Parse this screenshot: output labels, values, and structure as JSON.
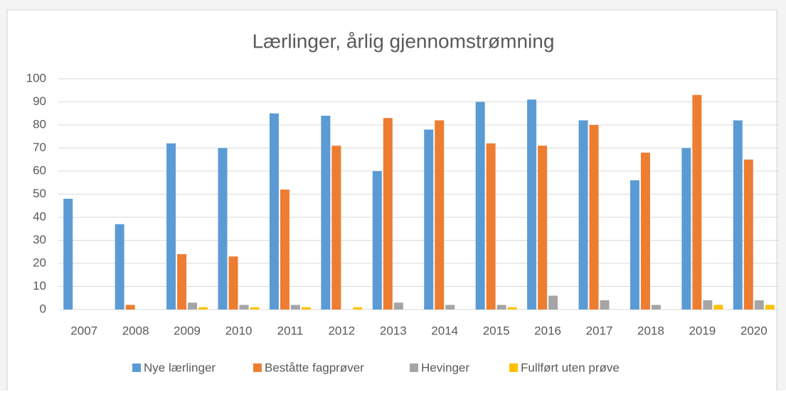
{
  "chart_data": {
    "type": "bar",
    "title": "Lærlinger, årlig gjennomstrømning",
    "categories": [
      "2007",
      "2008",
      "2009",
      "2010",
      "2011",
      "2012",
      "2013",
      "2014",
      "2015",
      "2016",
      "2017",
      "2018",
      "2019",
      "2020"
    ],
    "series": [
      {
        "name": "Nye lærlinger",
        "color": "#5b9bd5",
        "values": [
          48,
          37,
          72,
          70,
          85,
          84,
          60,
          78,
          90,
          91,
          82,
          56,
          70,
          82
        ]
      },
      {
        "name": "Beståtte fagprøver",
        "color": "#ed7d31",
        "values": [
          0,
          2,
          24,
          23,
          52,
          71,
          83,
          82,
          72,
          71,
          80,
          68,
          93,
          65
        ]
      },
      {
        "name": "Hevinger",
        "color": "#a5a5a5",
        "values": [
          0,
          0,
          3,
          2,
          2,
          0,
          3,
          2,
          2,
          6,
          4,
          2,
          4,
          4
        ]
      },
      {
        "name": "Fullført uten prøve",
        "color": "#ffc000",
        "values": [
          0,
          0,
          1,
          1,
          1,
          1,
          0,
          0,
          1,
          0,
          0,
          0,
          2,
          2
        ]
      }
    ],
    "ylim": [
      0,
      100
    ],
    "yticks": [
      0,
      10,
      20,
      30,
      40,
      50,
      60,
      70,
      80,
      90,
      100
    ],
    "grid": true,
    "legend": "bottom"
  }
}
